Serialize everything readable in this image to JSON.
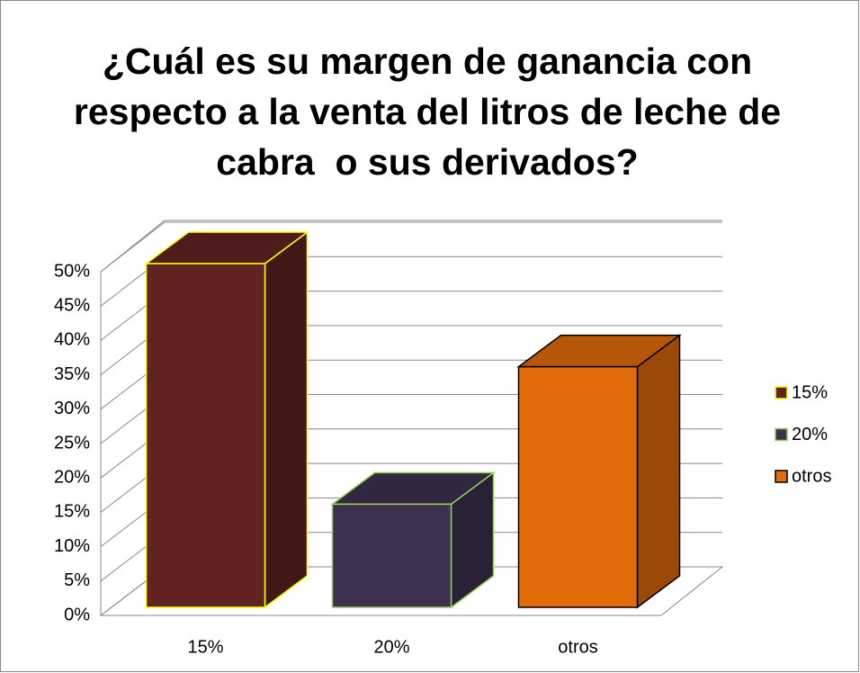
{
  "chart_data": {
    "type": "bar3d",
    "title": "¿Cuál es su margen de ganancia con respecto a la venta del litros de leche de cabra  o sus derivados?",
    "categories": [
      "15%",
      "20%",
      "otros"
    ],
    "values": [
      50,
      15,
      35
    ],
    "colors": [
      "#612321",
      "#3d3150",
      "#e36c0a"
    ],
    "edgecolors": [
      "#ffff00",
      "#92d050",
      "#000000"
    ],
    "ylim": [
      0,
      50
    ],
    "yticks": [
      {
        "value": 0,
        "label": "0%"
      },
      {
        "value": 5,
        "label": "5%"
      },
      {
        "value": 10,
        "label": "10%"
      },
      {
        "value": 15,
        "label": "15%"
      },
      {
        "value": 20,
        "label": "20%"
      },
      {
        "value": 25,
        "label": "25%"
      },
      {
        "value": 30,
        "label": "30%"
      },
      {
        "value": 35,
        "label": "35%"
      },
      {
        "value": 40,
        "label": "40%"
      },
      {
        "value": 45,
        "label": "45%"
      },
      {
        "value": 50,
        "label": "50%"
      }
    ],
    "grid": true,
    "legend": "right"
  }
}
